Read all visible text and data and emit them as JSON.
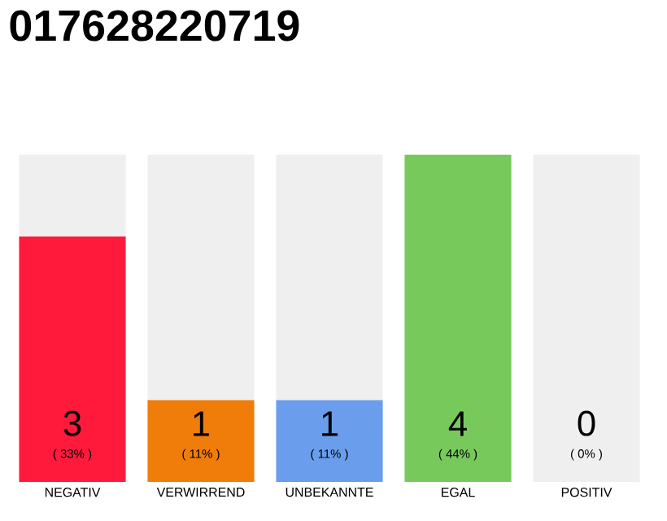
{
  "chart_data": {
    "type": "bar",
    "title": "017628220719",
    "stacked": true,
    "categories": [
      "NEGATIV",
      "VERWIRREND",
      "UNBEKANNTE",
      "EGAL",
      "POSITIV"
    ],
    "series": [
      {
        "colors": [
          "#ff1a3c",
          "#f07d0a",
          "#6a9eec",
          "#77c95c",
          "#9e9e9e"
        ],
        "values": [
          3,
          1,
          1,
          4,
          0
        ],
        "value_labels": [
          "3",
          "1",
          "1",
          "4",
          null
        ]
      },
      {
        "color": "#efefef",
        "values": [
          1,
          3,
          3,
          0,
          4
        ]
      }
    ],
    "annotations": [
      {
        "text": "( 33% )",
        "x": "NEGATIV",
        "y": 0
      },
      {
        "text": "( 11% )",
        "x": "VERWIRREND",
        "y": 0
      },
      {
        "text": "( 11% )",
        "x": "UNBEKANNTE",
        "y": 0
      },
      {
        "text": "( 44% )",
        "x": "EGAL",
        "y": 0
      },
      {
        "text": "( 0% )",
        "x": "POSITIV",
        "y": 0
      },
      {
        "text": "0",
        "x": "POSITIV",
        "y": 0
      }
    ]
  }
}
